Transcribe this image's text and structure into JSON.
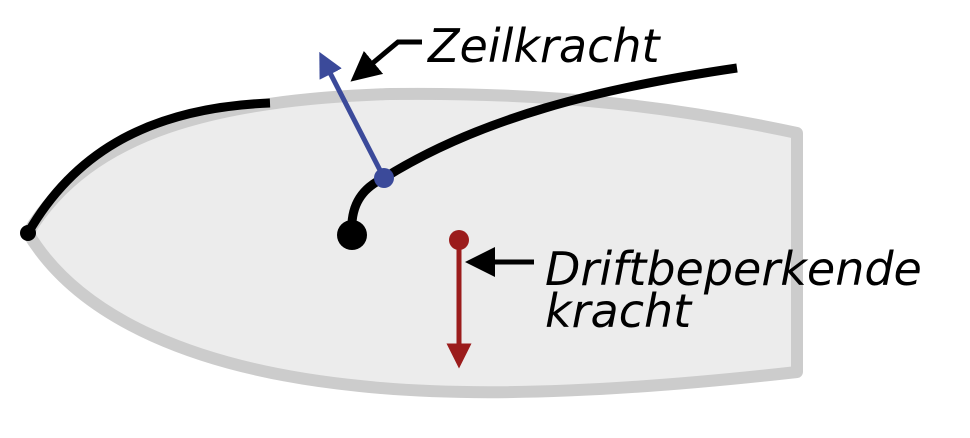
{
  "labels": {
    "sail_force": "Zeilkracht",
    "lateral_force_line1": "Driftbeperkende",
    "lateral_force_line2": "kracht"
  },
  "colors": {
    "hull_fill": "#ececec",
    "hull_outline": "#cccccc",
    "sail_line": "#000000",
    "sail_force_arrow": "#3b4a9a",
    "lateral_force_arrow": "#9b1c1c",
    "text": "#000000"
  }
}
